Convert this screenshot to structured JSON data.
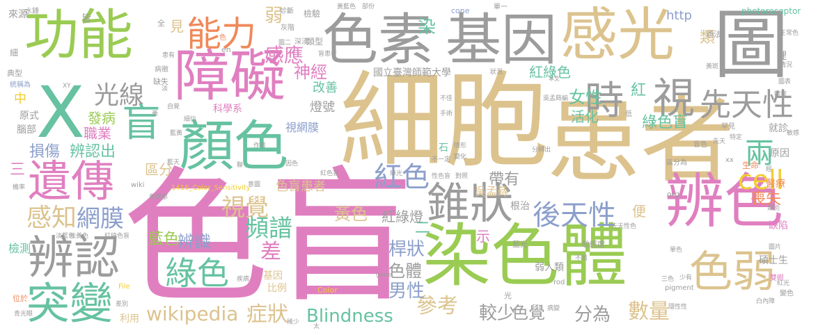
{
  "palette": {
    "tan": "#dcc38e",
    "gray": "#9c9c9c",
    "pink": "#e07fc0",
    "green": "#9acb53",
    "teal": "#66c2a1",
    "orange": "#f0895a",
    "blue": "#8c9fcb",
    "yellow": "#f2cd2e"
  },
  "words": [
    {
      "text": "色盲",
      "color": "pink"
    },
    {
      "text": "細胞",
      "color": "tan"
    },
    {
      "text": "患者",
      "color": "tan"
    },
    {
      "text": "染色體",
      "color": "green"
    },
    {
      "text": "色素",
      "color": "gray"
    },
    {
      "text": "基因",
      "color": "gray"
    },
    {
      "text": "感光",
      "color": "tan"
    },
    {
      "text": "圖",
      "color": "gray"
    },
    {
      "text": "功能",
      "color": "green"
    },
    {
      "text": "X",
      "color": "teal"
    },
    {
      "text": "顏色",
      "color": "teal"
    },
    {
      "text": "障礙",
      "color": "pink"
    },
    {
      "text": "辨色",
      "color": "pink"
    },
    {
      "text": "遺傳",
      "color": "pink"
    },
    {
      "text": "辨認",
      "color": "gray"
    },
    {
      "text": "突變",
      "color": "teal"
    },
    {
      "text": "錐狀",
      "color": "gray"
    },
    {
      "text": "色弱",
      "color": "tan"
    },
    {
      "text": "能力",
      "color": "orange"
    },
    {
      "text": "盲",
      "color": "teal"
    },
    {
      "text": "時",
      "color": "gray"
    },
    {
      "text": "視",
      "color": "gray"
    },
    {
      "text": "先天性",
      "color": "gray"
    },
    {
      "text": "後天性",
      "color": "blue"
    },
    {
      "text": "兩",
      "color": "teal"
    },
    {
      "text": "cell",
      "color": "yellow"
    },
    {
      "text": "光線",
      "color": "gray"
    },
    {
      "text": "感知",
      "color": "tan"
    },
    {
      "text": "網膜",
      "color": "blue"
    },
    {
      "text": "視覺",
      "color": "tan"
    },
    {
      "text": "紅色",
      "color": "blue"
    },
    {
      "text": "頻譜",
      "color": "teal"
    },
    {
      "text": "差",
      "color": "pink"
    },
    {
      "text": "綠色",
      "color": "teal"
    },
    {
      "text": "藍色",
      "color": "green"
    },
    {
      "text": "辨識",
      "color": "blue"
    },
    {
      "text": "wikipedia",
      "color": "tan"
    },
    {
      "text": "症狀",
      "color": "tan"
    },
    {
      "text": "Blindness",
      "color": "teal"
    },
    {
      "text": "參考",
      "color": "tan"
    },
    {
      "text": "較少",
      "color": "gray"
    },
    {
      "text": "色覺",
      "color": "gray"
    },
    {
      "text": "分為",
      "color": "gray"
    },
    {
      "text": "數量",
      "color": "tan"
    },
    {
      "text": "男性",
      "color": "blue"
    },
    {
      "text": "桿狀",
      "color": "blue"
    },
    {
      "text": "色體",
      "color": "gray"
    },
    {
      "text": "黃色",
      "color": "tan"
    },
    {
      "text": "紅綠燈",
      "color": "gray"
    },
    {
      "text": "女性",
      "color": "teal"
    },
    {
      "text": "活化",
      "color": "teal"
    },
    {
      "text": "紅",
      "color": "teal"
    },
    {
      "text": "綠色盲",
      "color": "teal"
    },
    {
      "text": "感應",
      "color": "pink"
    },
    {
      "text": "弱",
      "color": "tan"
    },
    {
      "text": "見",
      "color": "tan"
    },
    {
      "text": "染",
      "color": "teal"
    },
    {
      "text": "神經",
      "color": "pink"
    },
    {
      "text": "紅綠色",
      "color": "teal"
    },
    {
      "text": "國立臺灣師範大學",
      "color": "gray"
    },
    {
      "text": "改善",
      "color": "teal"
    },
    {
      "text": "燈號",
      "color": "gray"
    },
    {
      "text": "視網膜",
      "color": "blue"
    },
    {
      "text": "科學系",
      "color": "pink"
    },
    {
      "text": "發病",
      "color": "green"
    },
    {
      "text": "職業",
      "color": "pink"
    },
    {
      "text": "損傷",
      "color": "blue"
    },
    {
      "text": "辨認出",
      "color": "teal"
    },
    {
      "text": "區分",
      "color": "tan"
    },
    {
      "text": "帶有",
      "color": "gray"
    },
    {
      "text": "類",
      "color": "tan"
    },
    {
      "text": "http",
      "color": "blue"
    },
    {
      "text": "喪失",
      "color": "orange"
    },
    {
      "text": "便",
      "color": "tan"
    },
    {
      "text": "色盲患者",
      "color": "tan"
    },
    {
      "text": "示",
      "color": "pink"
    },
    {
      "text": "二",
      "color": "teal"
    },
    {
      "text": "三",
      "color": "pink"
    },
    {
      "text": "中",
      "color": "yellow"
    },
    {
      "text": "原式",
      "color": "gray"
    },
    {
      "text": "腦部",
      "color": "gray"
    },
    {
      "text": "檢測",
      "color": "teal"
    },
    {
      "text": "位於",
      "color": "orange"
    },
    {
      "text": "基因",
      "color": "tan"
    },
    {
      "text": "比例",
      "color": "tan"
    },
    {
      "text": "利用",
      "color": "tan"
    },
    {
      "text": "根治",
      "color": "gray"
    },
    {
      "text": "光",
      "color": "gray"
    },
    {
      "text": "弱人類",
      "color": "gray"
    },
    {
      "text": "敏感度",
      "color": "gray"
    },
    {
      "text": "吳孟蒔",
      "color": "tan"
    },
    {
      "text": "雙眼",
      "color": "pink"
    },
    {
      "text": "碩士生",
      "color": "gray"
    },
    {
      "text": "缺陷",
      "color": "pink"
    },
    {
      "text": "醫療",
      "color": "orange"
    },
    {
      "text": "生命",
      "color": "orange"
    },
    {
      "text": "原因",
      "color": "gray"
    },
    {
      "text": "辦法",
      "color": "gray"
    },
    {
      "text": "就診",
      "color": "gray"
    },
    {
      "text": "裡",
      "color": "gray"
    },
    {
      "text": "來源",
      "color": "gray"
    },
    {
      "text": "細",
      "color": "gray"
    },
    {
      "text": "典型",
      "color": "gray"
    },
    {
      "text": "統稱為",
      "color": "blue"
    },
    {
      "text": "水錘",
      "color": "gray"
    },
    {
      "text": "皆",
      "color": "gray"
    },
    {
      "text": "全",
      "color": "gray"
    },
    {
      "text": "色",
      "color": "orange"
    },
    {
      "text": "en",
      "color": "gray"
    },
    {
      "text": "類型",
      "color": "gray"
    },
    {
      "text": "cone",
      "color": "blue"
    },
    {
      "text": "photoreceptor",
      "color": "teal"
    },
    {
      "text": "正常色",
      "color": "gray"
    },
    {
      "text": "單一",
      "color": "gray"
    },
    {
      "text": "部份",
      "color": "gray"
    },
    {
      "text": "黃藍色",
      "color": "gray"
    },
    {
      "text": "檢驗",
      "color": "gray"
    },
    {
      "text": "診斷",
      "color": "gray"
    },
    {
      "text": "灰階",
      "color": "gray"
    },
    {
      "text": "深淺",
      "color": "gray"
    },
    {
      "text": "盲患者",
      "color": "gray"
    },
    {
      "text": "圖二",
      "color": "gray"
    },
    {
      "text": "患有",
      "color": "gray"
    },
    {
      "text": "病徵",
      "color": "gray"
    },
    {
      "text": "缺失",
      "color": "gray"
    },
    {
      "text": "XY",
      "color": "gray"
    },
    {
      "text": "淡",
      "color": "gray"
    },
    {
      "text": "狀況",
      "color": "gray"
    },
    {
      "text": "本文",
      "color": "gray"
    },
    {
      "text": "吳孟蒔編",
      "color": "gray"
    },
    {
      "text": "黃斑",
      "color": "gray"
    },
    {
      "text": "情況",
      "color": "gray"
    },
    {
      "text": "圖表",
      "color": "gray"
    },
    {
      "text": "罕見",
      "color": "gray"
    },
    {
      "text": "敏感",
      "color": "gray"
    },
    {
      "text": "特定",
      "color": "gray"
    },
    {
      "text": "盲色",
      "color": "gray"
    },
    {
      "text": "區分為",
      "color": "gray"
    },
    {
      "text": "類別",
      "color": "gray"
    },
    {
      "text": "機率",
      "color": "gray"
    },
    {
      "text": "wiki",
      "color": "gray"
    },
    {
      "text": "1416_Color_Sensitivity",
      "color": "yellow"
    },
    {
      "text": "意圖",
      "color": "gray"
    },
    {
      "text": "黃斑部",
      "color": "gray"
    },
    {
      "text": "紅綠色盲",
      "color": "gray"
    },
    {
      "text": "淡黃色",
      "color": "gray"
    },
    {
      "text": "青光眼",
      "color": "gray"
    },
    {
      "text": "差別",
      "color": "gray"
    },
    {
      "text": "File",
      "color": "yellow"
    },
    {
      "text": "Color",
      "color": "yellow"
    },
    {
      "text": "gene",
      "color": "gray"
    },
    {
      "text": "rod",
      "color": "gray"
    },
    {
      "text": "org",
      "color": "gray"
    },
    {
      "text": "pigment",
      "color": "gray"
    },
    {
      "text": "單色",
      "color": "gray"
    },
    {
      "text": "圖片",
      "color": "gray"
    },
    {
      "text": "紅光",
      "color": "gray"
    },
    {
      "text": "變色",
      "color": "gray"
    },
    {
      "text": "白內障",
      "color": "gray"
    },
    {
      "text": "隱性性",
      "color": "gray"
    },
    {
      "text": "淡藍色",
      "color": "gray"
    },
    {
      "text": "三色",
      "color": "gray"
    },
    {
      "text": "少有",
      "color": "gray"
    },
    {
      "text": "藍光",
      "color": "gray"
    },
    {
      "text": "先天性色",
      "color": "gray"
    },
    {
      "text": "不易",
      "color": "gray"
    },
    {
      "text": "病變",
      "color": "gray"
    },
    {
      "text": "情形",
      "color": "gray"
    },
    {
      "text": "變化",
      "color": "gray"
    },
    {
      "text": "分辨出",
      "color": "gray"
    },
    {
      "text": "不一定",
      "color": "gray"
    },
    {
      "text": "手術",
      "color": "gray"
    },
    {
      "text": "不佳",
      "color": "gray"
    },
    {
      "text": "作者",
      "color": "gray"
    },
    {
      "text": "因色",
      "color": "gray"
    },
    {
      "text": "太",
      "color": "gray"
    },
    {
      "text": "石",
      "color": "teal"
    },
    {
      "text": "疾病",
      "color": "gray"
    },
    {
      "text": "稀少",
      "color": "gray"
    },
    {
      "text": "觀察",
      "color": "gray"
    },
    {
      "text": "低",
      "color": "gray"
    },
    {
      "text": "自覺",
      "color": "gray"
    },
    {
      "text": "細位",
      "color": "gray"
    },
    {
      "text": "黃",
      "color": "gray"
    },
    {
      "text": "藍黃",
      "color": "gray"
    },
    {
      "text": "聯",
      "color": "gray"
    },
    {
      "text": "經",
      "color": "gray"
    },
    {
      "text": "xx",
      "color": "gray"
    },
    {
      "text": "紅色盲",
      "color": "gray"
    },
    {
      "text": "對照",
      "color": "gray"
    },
    {
      "text": "性色盲",
      "color": "gray"
    },
    {
      "text": "先天",
      "color": "gray"
    },
    {
      "text": "綠光",
      "color": "gray"
    },
    {
      "text": "藍天",
      "color": "gray"
    }
  ]
}
